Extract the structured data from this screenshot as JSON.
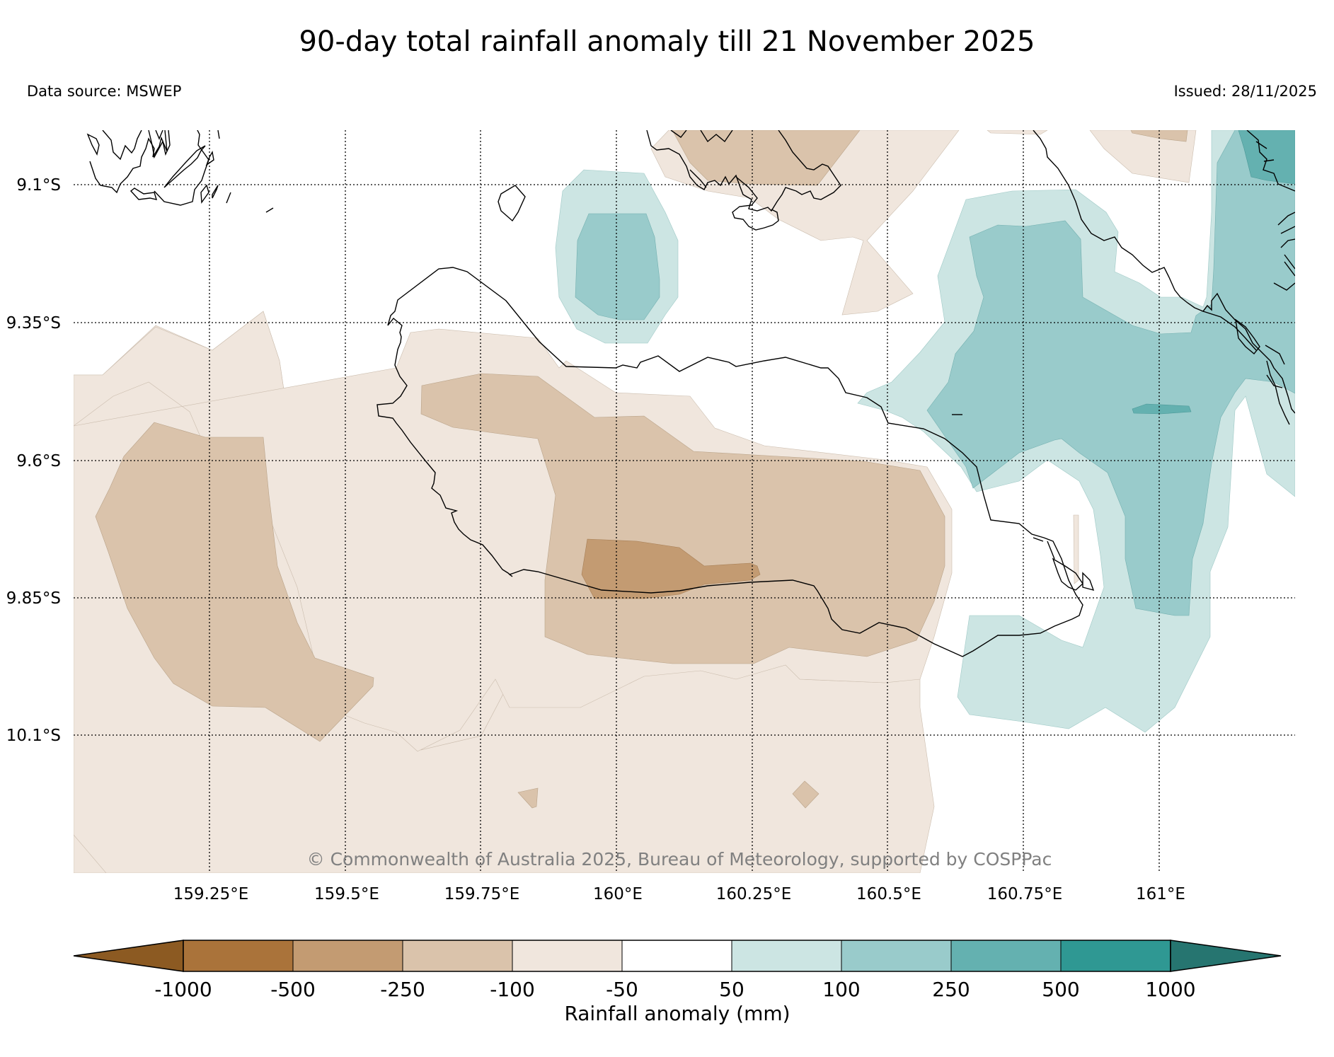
{
  "title": "90-day total rainfall anomaly till 21 November 2025",
  "data_source": "Data source: MSWEP",
  "issued": "Issued: 28/11/2025",
  "copyright": "© Commonwealth of Australia 2025, Bureau of Meteorology, supported by COSPPac",
  "map": {
    "lat_range": [
      -10.35,
      -9.0
    ],
    "lon_range": [
      159.0,
      161.25
    ],
    "lat_gridlines": [
      "9.1°S",
      "9.35°S",
      "9.6°S",
      "9.85°S",
      "10.1°S"
    ],
    "lon_gridlines": [
      "159.25°E",
      "159.5°E",
      "159.75°E",
      "160°E",
      "160.25°E",
      "160.5°E",
      "160.75°E",
      "161°E"
    ]
  },
  "colors": {
    "dry_strong": "#8c5a22",
    "dry_1000": "#aa733a",
    "dry_500": "#c39b72",
    "dry_250": "#dac3ab",
    "dry_100": "#f0e6dd",
    "neutral": "#ffffff",
    "wet_50": "#cce5e3",
    "wet_100": "#99cbcb",
    "wet_250": "#64b1b0",
    "wet_500": "#2f9893",
    "wet_strong": "#267570"
  },
  "colorbar": {
    "ticks": [
      "-1000",
      "-500",
      "-250",
      "-100",
      "-50",
      "50",
      "100",
      "250",
      "500",
      "1000"
    ],
    "label": "Rainfall anomaly (mm)"
  }
}
